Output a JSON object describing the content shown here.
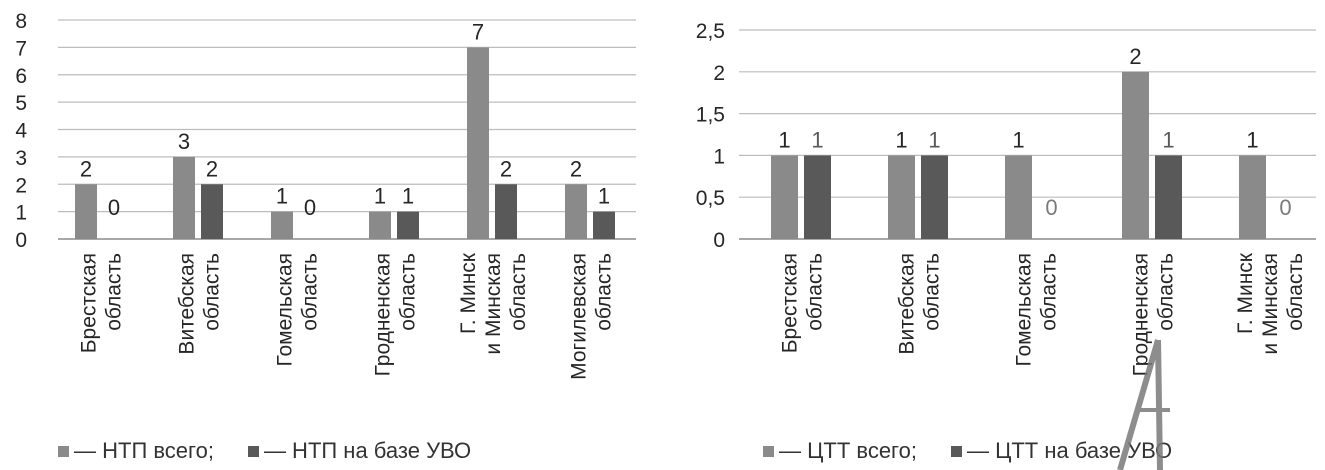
{
  "colors": {
    "primary": "#8a8a8a",
    "secondary": "#595959",
    "grid": "#bdbdbd",
    "axis": "#8c8c8c",
    "text": "#262626"
  },
  "chart_data": [
    {
      "type": "bar",
      "categories": [
        [
          "Брестская",
          "область"
        ],
        [
          "Витебская",
          "область"
        ],
        [
          "Гомельская",
          "область"
        ],
        [
          "Гродненская",
          "область"
        ],
        [
          "Г. Минск",
          "и Минская",
          "область"
        ],
        [
          "Могилевская",
          "область"
        ]
      ],
      "series": [
        {
          "name": "— НТП всего;",
          "values": [
            2,
            3,
            1,
            1,
            7,
            2
          ]
        },
        {
          "name": "— НТП на базе УВО",
          "values": [
            0,
            2,
            0,
            1,
            2,
            1
          ]
        }
      ],
      "ylim": [
        0,
        8
      ],
      "yticks": [
        0,
        1,
        2,
        3,
        4,
        5,
        6,
        7,
        8
      ],
      "ytick_labels": [
        "0",
        "1",
        "2",
        "3",
        "4",
        "5",
        "6",
        "7",
        "8"
      ],
      "data_labels": [
        [
          "2",
          "3",
          "1",
          "1",
          "7",
          "2"
        ],
        [
          "0",
          "2",
          "0",
          "1",
          "2",
          "1"
        ]
      ],
      "grid": true,
      "legend_position": "bottom-left"
    },
    {
      "type": "bar",
      "categories": [
        [
          "Брестская",
          "область"
        ],
        [
          "Витебская",
          "область"
        ],
        [
          "Гомельская",
          "область"
        ],
        [
          "Гродненская",
          "область"
        ],
        [
          "Г. Минск",
          "и Минская",
          "область"
        ]
      ],
      "series": [
        {
          "name": "— ЦТТ всего;",
          "values": [
            1,
            1,
            1,
            2,
            1
          ]
        },
        {
          "name": "— ЦТТ на базе УВО",
          "values": [
            1,
            1,
            0,
            1,
            0
          ]
        }
      ],
      "ylim": [
        0,
        2.5
      ],
      "yticks": [
        0,
        0.5,
        1,
        1.5,
        2,
        2.5
      ],
      "ytick_labels": [
        "0",
        "0,5",
        "1",
        "1,5",
        "2",
        "2,5"
      ],
      "data_labels": [
        [
          "1",
          "1",
          "1",
          "2",
          "1"
        ],
        [
          "1",
          "1",
          "0",
          "1",
          "0"
        ]
      ],
      "grid": true,
      "legend_position": "bottom-left"
    }
  ]
}
